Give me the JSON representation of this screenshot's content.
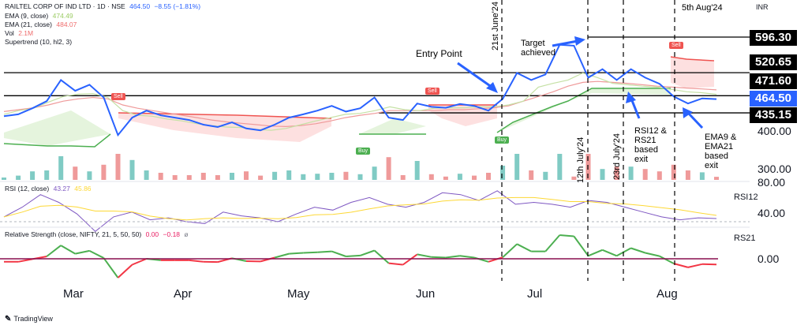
{
  "header": {
    "symbol": "RAILTEL CORP OF IND LTD · 1D · NSE",
    "last": "464.50",
    "change": "−8.55 (−1.81%)",
    "currency": "INR"
  },
  "indicators": [
    {
      "label": "EMA (9, close)",
      "value": "474.49",
      "color": "#9ccc65"
    },
    {
      "label": "EMA (21, close)",
      "value": "484.07",
      "color": "#ef6c6c"
    },
    {
      "label": "Vol",
      "value": "2.1M",
      "color": "#ef6c6c"
    },
    {
      "label": "Supertrend (10, hl2, 3)",
      "value": "",
      "color": "#131722"
    }
  ],
  "rsi_legend": {
    "label": "RSI (12, close)",
    "v1": "43.27",
    "v2": "45.86"
  },
  "rs_legend": {
    "label": "Relative Strength (close, NIFTY, 21, 5, 50, 50)",
    "v1": "0.00",
    "v2": "−0.18",
    "v3": "ø"
  },
  "price_axis": {
    "p1": "596.30",
    "p2": "520.65",
    "p3": "471.60",
    "p4": "464.50",
    "p5": "435.15",
    "t1": "400.00",
    "t2": "300.00"
  },
  "rsi_axis": {
    "a": "80.00",
    "b": "40.00",
    "name": "RSI12"
  },
  "rs_axis": {
    "a": "0.00",
    "name": "RS21"
  },
  "months": [
    "Mar",
    "Apr",
    "May",
    "Jun",
    "Jul",
    "Aug"
  ],
  "annotations": {
    "entry": "Entry Point",
    "target": "Target achieved",
    "exit1": "RSI12 & RS21 based exit",
    "exit2": "EMA9 & EMA21 based exit",
    "date1": "21st June'24",
    "date2": "12th July'24",
    "date3": "23rd July'24",
    "date4": "5th Aug'24"
  },
  "signals": {
    "sell": "Sell",
    "buy": "Buy"
  },
  "branding": "TradingView",
  "chart_data": {
    "type": "line",
    "title": "RAILTEL CORP OF IND LTD · 1D · NSE",
    "price_series": [
      428,
      432,
      445,
      460,
      505,
      482,
      495,
      468,
      388,
      425,
      440,
      430,
      425,
      420,
      410,
      405,
      415,
      402,
      398,
      410,
      425,
      432,
      440,
      450,
      438,
      445,
      468,
      425,
      420,
      455,
      448,
      446,
      454,
      450,
      440,
      465,
      520,
      505,
      517,
      580,
      578,
      510,
      528,
      505,
      528,
      510,
      497,
      470,
      455,
      466,
      464.5
    ],
    "ema9": [
      432,
      440,
      445,
      458,
      470,
      475,
      476,
      468,
      440,
      430,
      428,
      422,
      418,
      412,
      408,
      405,
      404,
      400,
      398,
      402,
      410,
      418,
      425,
      432,
      434,
      440,
      448,
      442,
      440,
      445,
      446,
      446,
      448,
      448,
      452,
      460,
      490,
      498,
      505,
      520,
      510,
      498,
      495,
      492,
      490,
      485,
      480,
      478,
      474.49
    ],
    "ema21": [
      438,
      442,
      446,
      452,
      460,
      465,
      468,
      465,
      452,
      445,
      440,
      435,
      430,
      425,
      420,
      416,
      413,
      410,
      407,
      406,
      408,
      412,
      418,
      425,
      430,
      434,
      440,
      440,
      440,
      440,
      442,
      442,
      444,
      446,
      450,
      460,
      470,
      480,
      492,
      500,
      502,
      500,
      498,
      495,
      492,
      490,
      488,
      486,
      484.07
    ],
    "horizontal_levels": [
      596.3,
      520.65,
      471.6,
      435.15
    ],
    "y_ticks": [
      400,
      300
    ],
    "rsi": {
      "name": "RSI12",
      "levels": [
        80,
        40
      ],
      "values": [
        45,
        55,
        68,
        60,
        48,
        30,
        45,
        50,
        42,
        44,
        40,
        38,
        50,
        46,
        44,
        40,
        48,
        55,
        52,
        60,
        65,
        58,
        55,
        60,
        70,
        68,
        62,
        72,
        58,
        60,
        58,
        55,
        62,
        60,
        55,
        50,
        45,
        42,
        44,
        43.27
      ]
    },
    "relative_strength": {
      "name": "RS21",
      "zero": 0.0,
      "last": -0.18
    },
    "x_labels": [
      "Mar",
      "Apr",
      "May",
      "Jun",
      "Jul",
      "Aug"
    ]
  }
}
